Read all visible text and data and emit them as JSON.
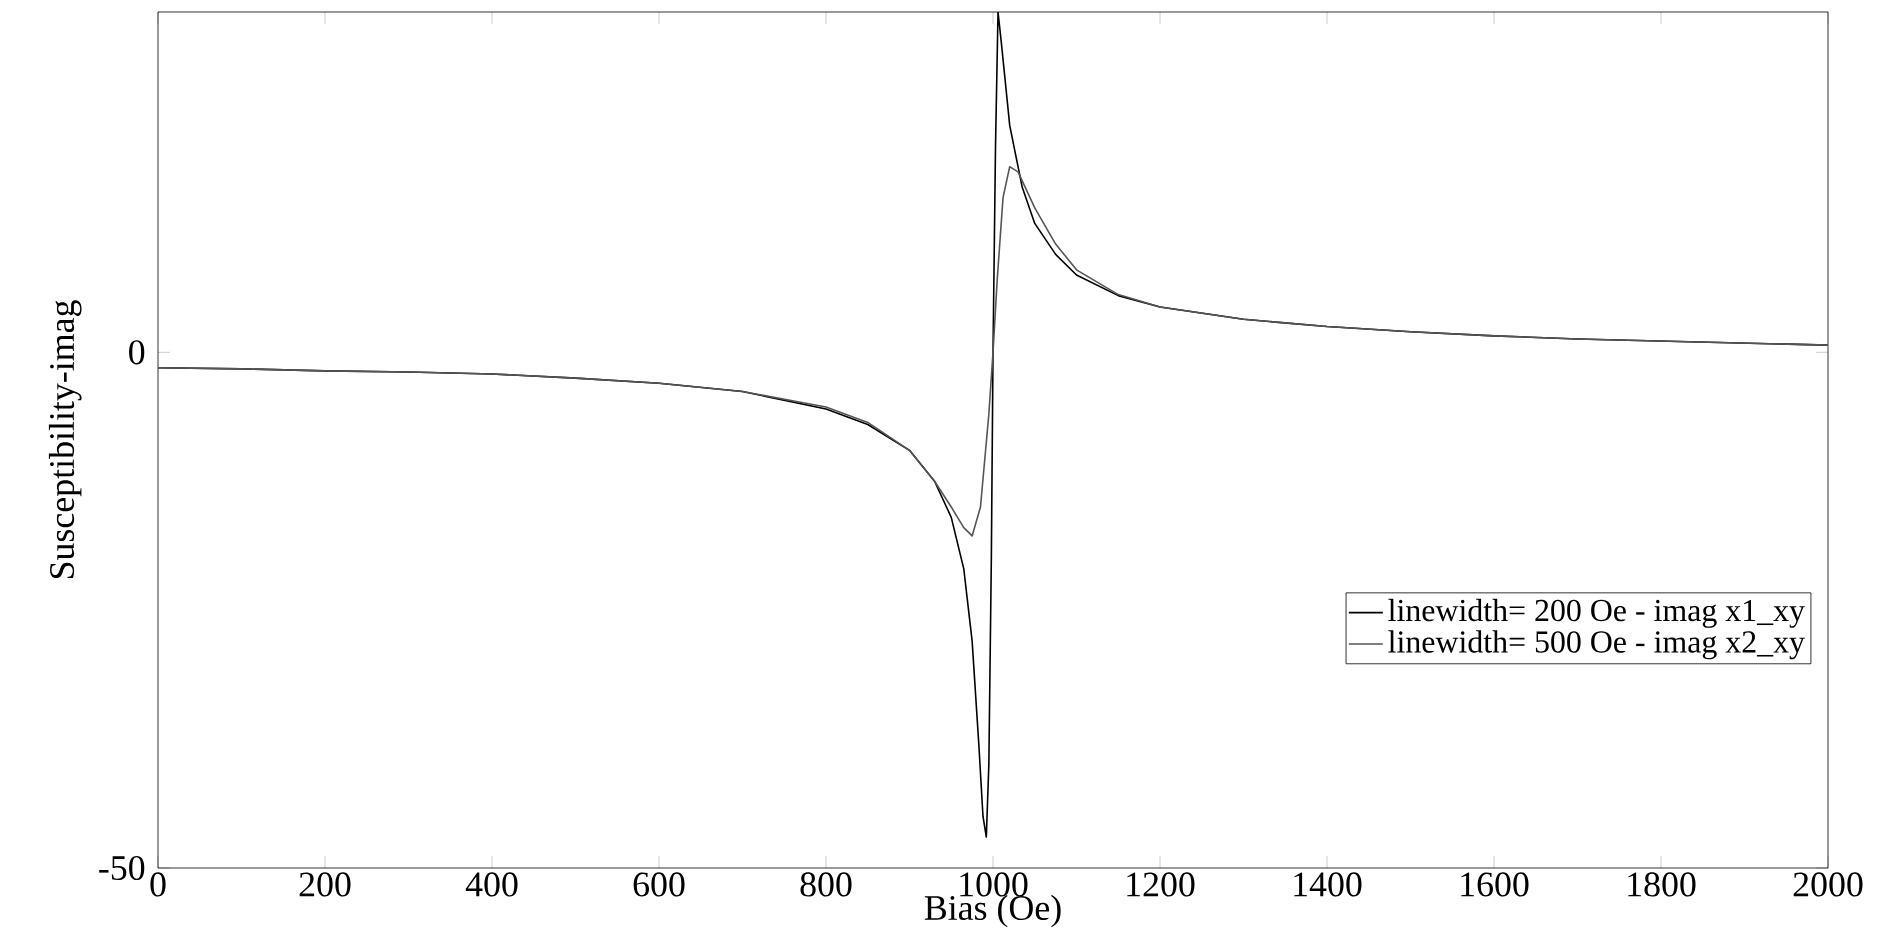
{
  "chart_data": {
    "type": "line",
    "xlabel": "Bias (Oe)",
    "ylabel": "Susceptibility-imag",
    "xlim": [
      0,
      2000
    ],
    "ylim": [
      -50,
      33
    ],
    "xticks": [
      0,
      200,
      400,
      600,
      800,
      1000,
      1200,
      1400,
      1600,
      1800,
      2000
    ],
    "yticks": [
      -50,
      0
    ],
    "legend": "right",
    "grid": false,
    "line_style": "solid",
    "marker": "none",
    "series": [
      {
        "name": "linewidth= 200 Oe - imag x1_xy",
        "color": "#000000",
        "x": [
          0,
          100,
          200,
          300,
          400,
          500,
          600,
          700,
          800,
          850,
          900,
          930,
          950,
          965,
          975,
          983,
          988,
          992,
          995,
          998,
          1000,
          1003,
          1006,
          1010,
          1020,
          1035,
          1050,
          1075,
          1100,
          1150,
          1200,
          1300,
          1400,
          1500,
          1600,
          1700,
          1800,
          1900,
          2000
        ],
        "values": [
          -1.5,
          -1.6,
          -1.8,
          -1.9,
          -2.1,
          -2.5,
          -3,
          -3.8,
          -5.5,
          -7,
          -9.5,
          -12.5,
          -16,
          -21,
          -28,
          -38,
          -45,
          -47,
          -40,
          -20,
          0,
          20,
          33,
          30,
          22,
          16,
          12.5,
          9.5,
          7.5,
          5.5,
          4.4,
          3.2,
          2.5,
          2,
          1.6,
          1.3,
          1.1,
          0.9,
          0.7
        ]
      },
      {
        "name": "linewidth= 500 Oe - imag x2_xy",
        "color": "#555555",
        "x": [
          0,
          100,
          200,
          300,
          400,
          500,
          600,
          700,
          800,
          850,
          900,
          930,
          950,
          965,
          975,
          985,
          995,
          1000,
          1005,
          1012,
          1020,
          1030,
          1050,
          1075,
          1100,
          1150,
          1200,
          1300,
          1400,
          1500,
          1600,
          1700,
          1800,
          1900,
          2000
        ],
        "values": [
          -1.5,
          -1.6,
          -1.8,
          -1.9,
          -2.1,
          -2.5,
          -3,
          -3.8,
          -5.3,
          -6.8,
          -9.5,
          -12.5,
          -15,
          -17,
          -17.8,
          -15,
          -6,
          0,
          7,
          15,
          18,
          17.5,
          14,
          10.5,
          8,
          5.6,
          4.4,
          3.2,
          2.5,
          2,
          1.6,
          1.3,
          1.1,
          0.9,
          0.7
        ]
      }
    ]
  }
}
